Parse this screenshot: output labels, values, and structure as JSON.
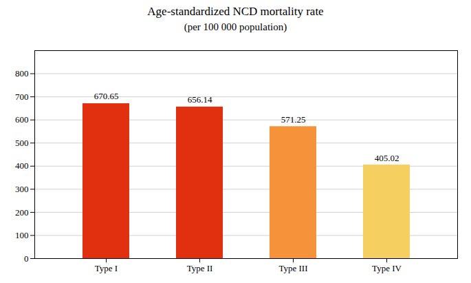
{
  "chart_data": {
    "type": "bar",
    "title": "Age-standardized NCD mortality rate",
    "subtitle": "(per 100 000 population)",
    "categories": [
      "Type I",
      "Type II",
      "Type III",
      "Type IV"
    ],
    "values": [
      670.65,
      656.14,
      571.25,
      405.02
    ],
    "colors": [
      "#E03010",
      "#E03010",
      "#F5923A",
      "#F5D060"
    ],
    "ylim": [
      0,
      900
    ],
    "yticks": [
      0,
      100,
      200,
      300,
      400,
      500,
      600,
      700,
      800
    ],
    "grid": true,
    "data_labels": true
  }
}
